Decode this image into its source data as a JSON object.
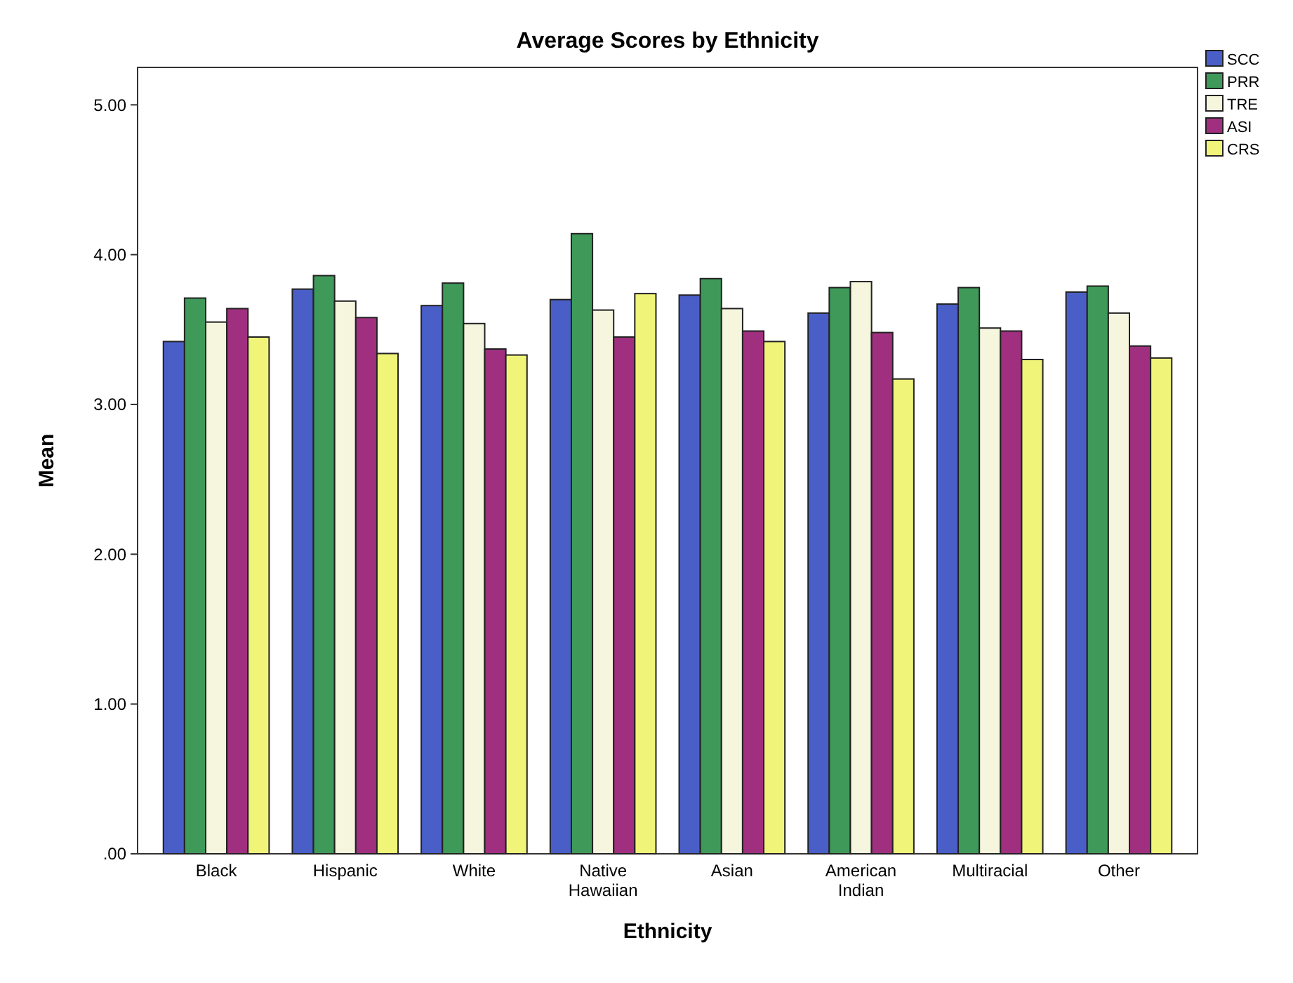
{
  "chart_data": {
    "type": "bar",
    "title": "Average Scores by Ethnicity",
    "xlabel": "Ethnicity",
    "ylabel": "Mean",
    "categories": [
      "Black",
      "Hispanic",
      "White",
      "Native Hawaiian",
      "Asian",
      "American Indian",
      "Multiracial",
      "Other"
    ],
    "series": [
      {
        "name": "SCC",
        "color": "#4a5ec8",
        "values": [
          3.42,
          3.77,
          3.66,
          3.7,
          3.73,
          3.61,
          3.67,
          3.75
        ]
      },
      {
        "name": "PRR",
        "color": "#3f9a5a",
        "values": [
          3.71,
          3.86,
          3.81,
          4.14,
          3.84,
          3.78,
          3.78,
          3.79
        ]
      },
      {
        "name": "TRE",
        "color": "#f6f6de",
        "values": [
          3.55,
          3.69,
          3.54,
          3.63,
          3.64,
          3.82,
          3.51,
          3.61
        ]
      },
      {
        "name": "ASI",
        "color": "#a0307f",
        "values": [
          3.64,
          3.58,
          3.37,
          3.45,
          3.49,
          3.48,
          3.49,
          3.39
        ]
      },
      {
        "name": "CRS",
        "color": "#f0f57a",
        "values": [
          3.45,
          3.34,
          3.33,
          3.74,
          3.42,
          3.17,
          3.3,
          3.31
        ]
      }
    ],
    "ylim": [
      0,
      5.25
    ],
    "yticks": [
      {
        "value": 0,
        "label": ".00"
      },
      {
        "value": 1,
        "label": "1.00"
      },
      {
        "value": 2,
        "label": "2.00"
      },
      {
        "value": 3,
        "label": "3.00"
      },
      {
        "value": 4,
        "label": "4.00"
      },
      {
        "value": 5,
        "label": "5.00"
      }
    ],
    "grid": false,
    "legend": "top right"
  }
}
